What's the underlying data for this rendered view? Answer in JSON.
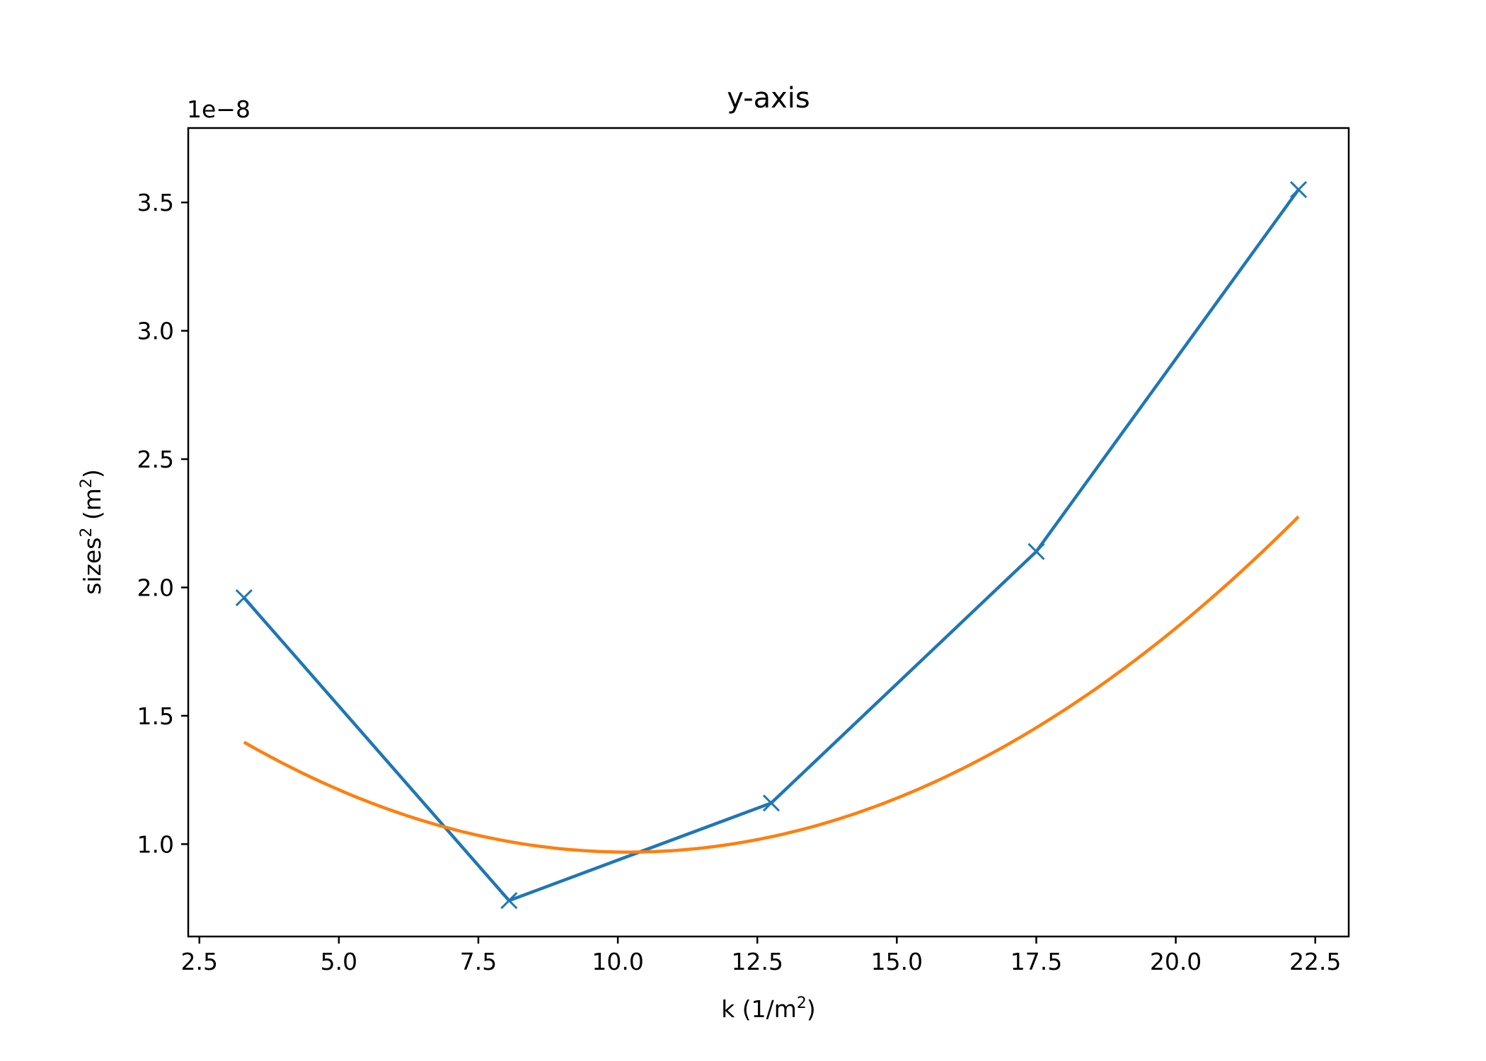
{
  "chart_data": {
    "type": "line",
    "title": "y-axis",
    "xlabel": {
      "text": "k (1/m",
      "sup": "2",
      "after": ")"
    },
    "ylabel": {
      "text": "sizes",
      "sup": "2",
      "mid": " (m",
      "sup2": "2",
      "after": ")"
    },
    "y_offset_label": "1e−8",
    "xlim": [
      2.3,
      23.1
    ],
    "ylim": [
      0.64,
      3.79
    ],
    "x_ticks": [
      2.5,
      5.0,
      7.5,
      10.0,
      12.5,
      15.0,
      17.5,
      20.0,
      22.5
    ],
    "x_tick_labels": [
      "2.5",
      "5.0",
      "7.5",
      "10.0",
      "12.5",
      "15.0",
      "17.5",
      "20.0",
      "22.5"
    ],
    "y_ticks": [
      1.0,
      1.5,
      2.0,
      2.5,
      3.0,
      3.5
    ],
    "y_tick_labels": [
      "1.0",
      "1.5",
      "2.0",
      "2.5",
      "3.0",
      "3.5"
    ],
    "grid": false,
    "legend": "none",
    "series": [
      {
        "kind": "data",
        "color": "#1f77b4",
        "marker": "x",
        "x": [
          3.3,
          8.05,
          12.75,
          17.5,
          22.2
        ],
        "y": [
          1.96,
          0.78,
          1.16,
          2.14,
          3.55
        ]
      },
      {
        "kind": "fit",
        "color": "#ff7f0e",
        "marker": "none",
        "quadratic_coeffs": [
          0.0090474,
          -0.184216,
          1.9066
        ],
        "x_range": [
          3.3,
          22.2
        ]
      }
    ]
  }
}
